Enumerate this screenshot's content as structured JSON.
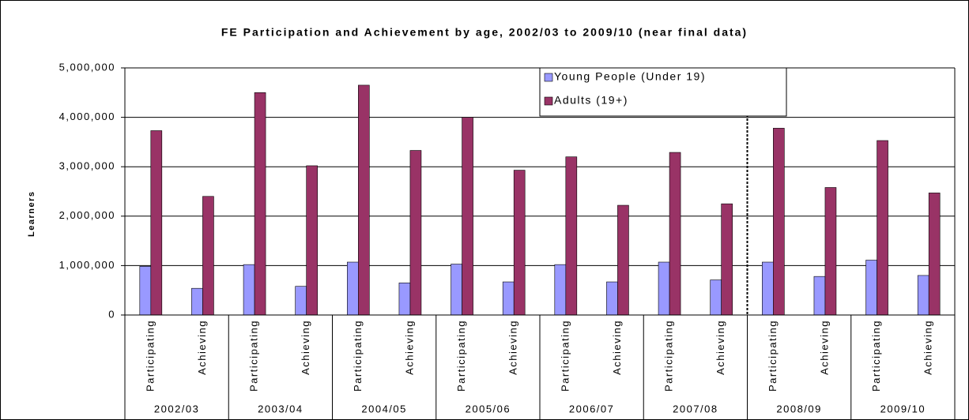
{
  "chart_data": {
    "type": "bar",
    "title": "FE Participation and Achievement by age, 2002/03 to 2009/10 (near final data)",
    "y_label": "Learners",
    "categories": [
      "Participating",
      "Achieving",
      "Participating",
      "Achieving",
      "Participating",
      "Achieving",
      "Participating",
      "Achieving",
      "Participating",
      "Achieving",
      "Participating",
      "Achieving",
      "Participating",
      "Achieving",
      "Participating",
      "Achieving"
    ],
    "category_groups": [
      "2002/03",
      "2003/04",
      "2004/05",
      "2005/06",
      "2006/07",
      "2007/08",
      "2008/09",
      "2009/10"
    ],
    "series": [
      {
        "name": "Young People (Under 19)",
        "color": "#9999ff",
        "values": [
          985000,
          540000,
          1020000,
          580000,
          1070000,
          650000,
          1030000,
          670000,
          1020000,
          670000,
          1070000,
          710000,
          1070000,
          780000,
          1110000,
          800000
        ]
      },
      {
        "name": "Adults (19+)",
        "color": "#993366",
        "values": [
          3730000,
          2400000,
          4500000,
          3020000,
          4650000,
          3330000,
          4000000,
          2930000,
          3200000,
          2220000,
          3290000,
          2250000,
          3780000,
          2580000,
          3530000,
          2470000
        ]
      }
    ],
    "ylim": [
      0,
      5000000
    ],
    "yticks": [
      0,
      {
        "value": 1000000,
        "label": "1,000,000"
      },
      {
        "value": 2000000,
        "label": "2,000,000"
      },
      {
        "value": 3000000,
        "label": "3,000,000"
      },
      {
        "value": 4000000,
        "label": "4,000,000"
      },
      {
        "value": 5000000,
        "label": "5,000,000"
      }
    ],
    "grid": true
  }
}
